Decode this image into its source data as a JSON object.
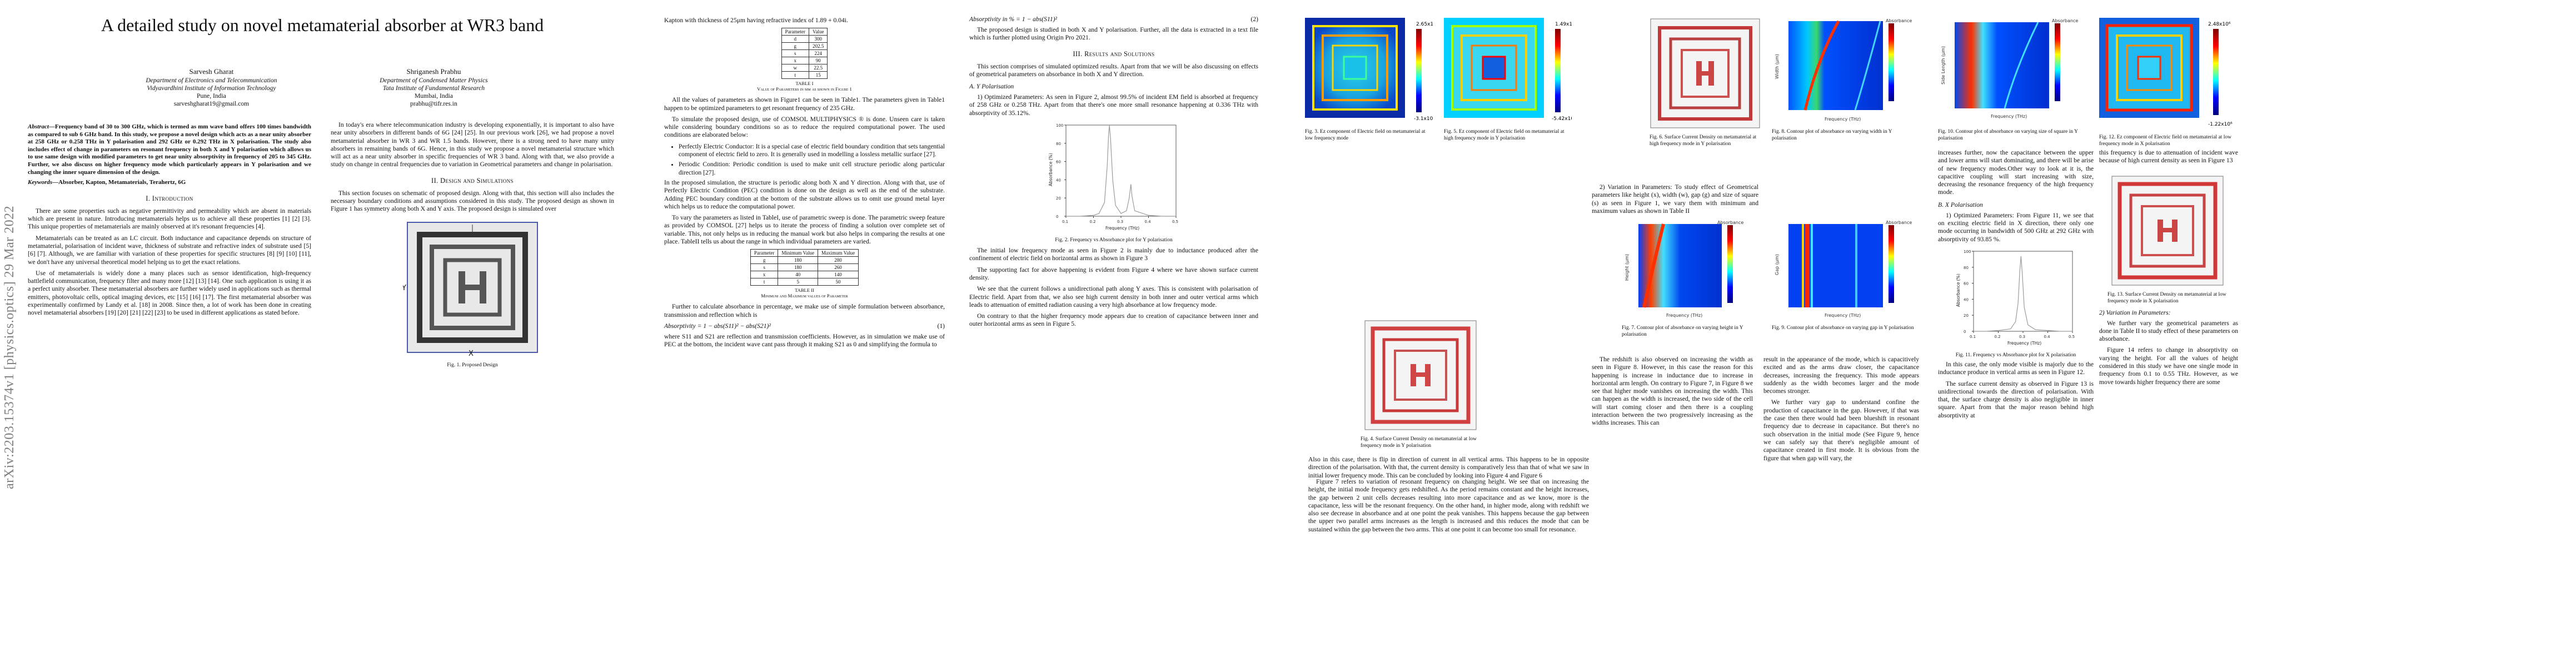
{
  "arxiv_id": "arXiv:2203.15374v1 [physics.optics] 29 Mar 2022",
  "title": "A detailed study on novel metamaterial absorber at WR3 band",
  "authors": [
    {
      "name": "Sarvesh Gharat",
      "dept": "Department of Electronics and Telecommunication",
      "inst": "Vidyavardhini Institute of Information Technology",
      "city": "Pune, India",
      "email": "sarveshgharat19@gmail.com"
    },
    {
      "name": "Shriganesh Prabhu",
      "dept": "Department of Condensed Matter Physics",
      "inst": "Tata Institute of Fundamental Research",
      "city": "Mumbai, India",
      "email": "prabhu@tifr.res.in"
    }
  ],
  "abstract_label": "Abstract",
  "abstract": "—Frequency band of 30 to 300 GHz, which is termed as mm wave band offers 100 times bandwidth as compared to sub 6 GHz band. In this study, we propose a novel design which acts as a near unity absorber at 258 GHz or 0.258 THz in Y polarisation and 292 GHz or 0.292 THz in X polarisation. The study also includes effect of change in parameters on resonant frequency in both X and Y polarisation which allows us to use same design with modified parameters to get near unity absorptivity in frequency of 205 to 345 GHz. Further, we also discuss on higher frequency mode which particularly appears in Y polarisation and we changing the inner square dimension of the design.",
  "keywords_label": "Keywords",
  "keywords": "—Absorber, Kapton, Metamaterials, Terahertz, 6G",
  "p1": {
    "sec_intro": "I. Introduction",
    "intro_1": "There are some properties such as negative permittivity and permeability which are absent in materials which are present in nature. Introducing metamaterials helps us to achieve all these properties [1] [2] [3]. This unique properties of metamaterials are mainly observed at it's resonant frequencies [4].",
    "intro_2": "Metamaterials can be treated as an LC circuit. Both inductance and capacitance depends on structure of metamaterial, polarisation of incident wave, thickness of substrate and refractive index of substrate used [5] [6] [7]. Although, we are familiar with variation of these properties for specific structures [8] [9] [10] [11], we don't have any universal theoretical model helping us to get the exact relations.",
    "intro_3": "Use of metamaterials is widely done a many places such as sensor identification, high-frequency battlefield communication, frequency filter and many more [12] [13] [14]. One such application is using it as a perfect unity absorber. These metamaterial absorbers are further widely used in applications such as thermal emitters, photovoltaic cells, optical imaging devices, etc [15] [16] [17]. The first metamaterial absorber was experimentally confirmed by Landy et al. [18] in 2008. Since then, a lot of work has been done in creating novel metamaterial absorbers [19] [20] [21] [22] [23] to be used in different applications as stated before.",
    "intro_4": "In today's era where telecommunication industry is developing exponentially, it is important to also have near unity absorbers in different bands of 6G [24] [25]. In our previous work [26], we had propose a novel metamaterial absorber in WR 3 and WR 1.5 bands. However, there is a strong need to have many unity absorbers in remaining bands of 6G. Hence, in this study we propose a novel metamaterial structure which will act as a near unity absorber in specific frequencies of WR 3 band. Along with that, we also provide a study on change in central frequencies due to variation in Geometrical parameters and change in polarisation.",
    "sec_design": "II. Design and Simulations",
    "design_1": "This section focuses on schematic of proposed design. Along with that, this section will also includes the necessary boundary conditions and assumptions considered in this study. The proposed design as shown in Figure 1 has symmetry along both X and Y axis. The proposed design is simulated over",
    "fig1_cap": "Fig. 1. Proposed Design"
  },
  "p2": {
    "col1_top": "Kapton with thickness of 25μm having refractive index of 1.89 + 0.04i.",
    "tableI_head": [
      "Parameter",
      "Value"
    ],
    "tableI_rows": [
      [
        "d",
        "300"
      ],
      [
        "g",
        "202.5"
      ],
      [
        "s",
        "224"
      ],
      [
        "x",
        "90"
      ],
      [
        "w",
        "22.5"
      ],
      [
        "t",
        "15"
      ]
    ],
    "tableI_cap": "TABLE I",
    "tableI_sub": "Value of Parameters in μm as shown in Figure 1",
    "para_1": "All the values of parameters as shown in Figure1 can be seen in Table1. The parameters given in Table1 happen to be optimized parameters to get resonant frequency of 235 GHz.",
    "para_2": "To simulate the proposed design, use of COMSOL MULTIPHYSICS ® is done. Unseen care is taken while considering boundary conditions so as to reduce the required computational power. The used conditions are elaborated below:",
    "bul_1": "Perfectly Electric Conductor: It is a special case of electric field boundary condition that sets tangential component of electric field to zero. It is generally used in modelling a lossless metallic surface [27].",
    "bul_2": "Periodic Condition: Periodic condition is used to make unit cell structure periodic along particular direction [27].",
    "para_3": "In the proposed simulation, the structure is periodic along both X and Y direction. Along with that, use of Perfectly Electric Condition (PEC) condition is done on the design as well as the end of the substrate. Adding PEC boundary condition at the bottom of the substrate allows us to omit use ground metal layer which helps us to reduce the computational power.",
    "para_4": "To vary the parameters as listed in TableI, use of parametric sweep is done. The parametric sweep feature as provided by COMSOL [27] helps us to iterate the process of finding a solution over complete set of variable. This, not only helps us in reducing the manual work but also helps in comparing the results at one place. TableII tells us about the range in which individual parameters are varied.",
    "tableII_head": [
      "Parameter",
      "Minimum Value",
      "Maximum Value"
    ],
    "tableII_rows": [
      [
        "g",
        "180",
        "280"
      ],
      [
        "s",
        "180",
        "260"
      ],
      [
        "x",
        "40",
        "140"
      ],
      [
        "t",
        "5",
        "50"
      ]
    ],
    "tableII_cap": "TABLE II",
    "tableII_sub": "Minimum and Maximum values of Parameter",
    "para_5": "Further to calculate absorbance in percentage, we make use of simple formulation between absorbance, transmission and reflection which is",
    "eq1": "Absorptivity = 1 − abs(S11)² − abs(S21)²",
    "eq1_no": "(1)",
    "para_6": "where S11 and S21 are reflection and transmission coefficients. However, as in simulation we make use of PEC at the bottom, the incident wave cant pass through it making S21 as 0 and simplifying the formula to",
    "eq2": "Absorptivity in % = 1 − abs(S11)²",
    "eq2_no": "(2)",
    "para_7": "The proposed design is studied in both X and Y polarisation. Further, all the data is extracted in a text file which is further plotted using Origin Pro 2021.",
    "sec_results": "III. Results and Solutions",
    "para_8": "This section comprises of simulated optimized results. Apart from that we will be also discussing on effects of geometrical parameters on absorbance in both X and Y direction.",
    "sub_ypol": "A. Y Polarisation",
    "para_9": "1) Optimized Parameters: As seen in Figure 2, almost 99.5% of incident EM field is absorbed at frequency of 258 GHz or 0.258 THz. Apart from that there's one more small resonance happening at 0.336 THz with absorptivity of 35.12%.",
    "fig2_cap": "Fig. 2. Frequency vs Absorbance plot for Y polarisation",
    "para_10": "The initial low frequency mode as seen in Figure 2 is mainly due to inductance produced after the confinement of electric field on horizontal arms as shown in Figure 3",
    "para_11": "The supporting fact for above happening is evident from Figure 4 where we have shown surface current density.",
    "para_12": "We see that the current follows a unidirectional path along Y axes. This is consistent with polarisation of Electric field. Apart from that, we also see high current density in both inner and outer vertical arms which leads to attenuation of emitted radiation causing a very high absorbance at low frequency mode.",
    "para_13": "On contrary to that the higher frequency mode appears due to creation of capacitance between inner and outer horizontal arms as seen in Figure 5."
  },
  "p3": {
    "fig3_cap": "Fig. 3. Ez component of Electric field on metamaterial at low frequency mode",
    "fig5_cap": "Fig. 5. Ez component of Electric field on metamaterial at high frequency mode in Y polarisation",
    "cb3_top": "2.65x10⁶",
    "cb3_bot": "-3.1x10⁶",
    "cb5_top": "1.49x10⁶",
    "cb5_bot": "-5.42x10⁵",
    "fig4_cap": "Fig. 4. Surface Current Density on metamaterial at low frequency mode in Y polarisation",
    "para_1": "Also in this case, there is flip in direction of current in all vertical arms. This happens to be in opposite direction of the polarisation. With that, the current density is comparatively less than that of what we saw in initial lower frequency mode. This can be concluded by looking into Figure 4 and Figure 6",
    "para_2": "2) Variation in Parameters: To study effect of Geometrical parameters like height (x), width (w), gap (g) and size of square (s) as seen in Figure 1, we vary them with minimum and maximum values as shown in Table II",
    "para_3": "Figure 7 refers to variation of resonant frequency on changing height. We see that on increasing the height, the initial mode frequency gets redshifted. As the period remains constant and the height increases, the gap between 2 unit cells decreases resulting into more capacitance and as we know, more is the capacitance, less will be the resonant frequency. On the other hand, in higher mode, along with redshift we also see decrease in absorbance and at one point the peak vanishes. This happens because the gap between the upper two parallel arms increases as the length is increased and this reduces the mode that can be sustained within the gap between the two arms. This at one point it can become too small for resonance.",
    "para_4": "The redshift is also observed on increasing the width as seen in Figure 8. However, in this case the reason for this happening is increase in inductance due to increase in horizontal arm length. On contrary to Figure 7, in Figure 8 we see that higher mode vanishes on increasing the width. This can happen as the width is increased, the two side of the cell will start coming closer and then there is a coupling interaction between the two progressively increasing as the widths increases. This can",
    "fig6_cap": "Fig. 6. Surface Current Density on metamaterial at high frequency mode in Y polarisation",
    "fig7_cap": "Fig. 7. Contour plot of absorbance on varying height in Y polarisation",
    "para_5": "result in the appearance of the mode, which is capacitively excited and as the arms draw closer, the capacitance decreases, increasing the frequency. This mode appears suddenly as the width becomes larger and the mode becomes stronger.",
    "para_6": "We further vary gap to understand confine the production of capacitance in the gap. However, if that was the case then there would had been blueshift in resonant frequency due to decrease in capacitance. But there's no such observation in the initial mode (See Figure 9, hence we can safely say that there's negligible amount of capacitance created in first mode. It is obvious from the figure that when gap will vary, the",
    "fig8_cap": "Fig. 8. Contour plot of absorbance on varying width in Y polarisation",
    "fig9_cap": "Fig. 9. Contour plot of absorbance on varying gap in Y polarisation",
    "para_7": "length remains the same, so frequency should not change. This can also be verified from Figure 3 where we don't see any confinement of electric field. On other hand, in high frequency mode, a considerable amount of capacitance is been created as seen in Figure 5. Hence, there's small amount of redshift happening at higher frequency as evident from Figure 9",
    "para_8": "From Figure 10, we observe that similar to gap, the internal square plays no major role in initial mode. This is expected as the first mode is due to the upper and lower arm gap capacitance. However, at high frequency, on increasing the inner square size, mode gets redshifted before vanishing away. However it reappears after getting close to exterior loop. This will happen if the inner square, after increasing it's size can start interacting with the upper and lower arm excitation mode. The increasing size of the central portion can result in the modified coupling of the upper-lower arms. So the frequency start reducing and will vanish at a particular combination of Size and arms length. Now if the size of the inner square"
  },
  "p4": {
    "fig10_cap": "Fig. 10. Contour plot of absorbance on varying size of square in Y polarisation",
    "para_1": "increases further, now the capacitance between the upper and lower arms will start dominating, and there will be arise of new frequency modes.Other way to look at it is, the capacitive coupling will start increasing with size, decreasing the resonance frequency of the high frequency mode.",
    "sub_xpol": "B. X Polarisation",
    "para_2": "1) Optimized Parameters: From Figure 11, we see that on exciting electric field in X direction, there only one mode occurring in bandwidth of 500 GHz at 292 GHz with absorptivity of 93.85 %.",
    "fig11_cap": "Fig. 11. Frequency vs Absorbance plot for X polarisation",
    "para_3": "In this case, the only mode visible is majorly due to the inductance produce in vertical arms as seen in Figure 12.",
    "para_4": "The surface current density as observed in Figure 13 is unidirectional towards the direction of polarisation. With that, the surface charge density is also negligible in inner square. Apart from that the major reason behind high absorptivity at",
    "fig12_cap": "Fig. 12. Ez component of Electric field on metamaterial at low frequency mode in X polarisation",
    "cb12_top": "2.48x10⁶",
    "cb12_bot": "-1.22x10⁶",
    "para_5": "this frequency is due to attenuation of incident wave because of high current density as seen in Figure 13",
    "fig13_cap": "Fig. 13. Surface Current Density on metamaterial at low frequency mode in X polarisation",
    "sub_var": "2) Variation in Parameters:",
    "para_6": "We further vary the geometrical parameters as done in Table II to study effect of these parameters on absorbance.",
    "para_7": "Figure 14 refers to change in absorptivity on varying the height. For all the values of height considered in this study we have one single mode in frequency from 0.1 to 0.55 THz. However, as we move towards higher frequency there are some"
  },
  "plot_labels": {
    "absorbance": "Absorbance",
    "frequency_thz": "Frequency (THz)",
    "height": "Height (μm)",
    "width": "Width (μm)",
    "gap": "Gap (μm)",
    "side": "Side Length (μm)"
  },
  "fig1_labels": {
    "y": "Y",
    "x": "X"
  },
  "chart_data": [
    {
      "type": "line",
      "figure": "Fig. 2",
      "x": [
        0.1,
        0.15,
        0.2,
        0.22,
        0.24,
        0.25,
        0.255,
        0.258,
        0.262,
        0.27,
        0.28,
        0.3,
        0.32,
        0.33,
        0.336,
        0.34,
        0.35,
        0.4,
        0.45,
        0.5
      ],
      "series": [
        {
          "values": [
            0,
            0,
            1,
            3,
            15,
            55,
            90,
            99.5,
            85,
            40,
            12,
            3,
            6,
            20,
            35.12,
            22,
            6,
            1,
            0,
            0
          ]
        }
      ],
      "xlabel": "Frequency (THz)",
      "ylabel": "Absorbance (%)",
      "xlim": [
        0.1,
        0.5
      ],
      "ylim": [
        0,
        100
      ]
    },
    {
      "type": "line",
      "figure": "Fig. 11",
      "x": [
        0.1,
        0.15,
        0.2,
        0.25,
        0.27,
        0.28,
        0.287,
        0.292,
        0.297,
        0.305,
        0.32,
        0.35,
        0.4,
        0.45,
        0.5
      ],
      "series": [
        {
          "values": [
            0,
            0,
            1,
            3,
            12,
            35,
            75,
            93.85,
            72,
            30,
            8,
            2,
            1,
            0,
            0
          ]
        }
      ],
      "xlabel": "Frequency (THz)",
      "ylabel": "Absorbance (%)",
      "xlim": [
        0.1,
        0.5
      ],
      "ylim": [
        0,
        100
      ]
    }
  ]
}
